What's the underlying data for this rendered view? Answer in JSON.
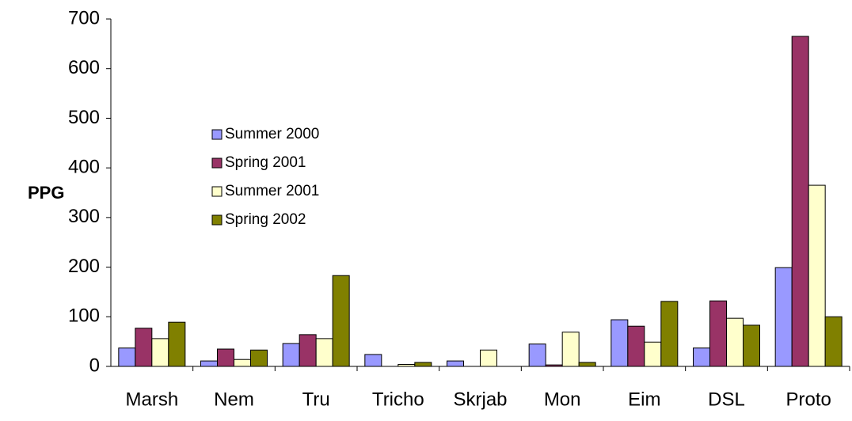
{
  "chart_data": {
    "type": "bar",
    "y_label": "PPG",
    "categories": [
      "Marsh",
      "Nem",
      "Tru",
      "Tricho",
      "Skrjab",
      "Mon",
      "Eim",
      "DSL",
      "Proto"
    ],
    "series": [
      {
        "name": "Summer 2000",
        "color": "#9999ff",
        "values": [
          37,
          11,
          46,
          24,
          11,
          45,
          94,
          37,
          199
        ]
      },
      {
        "name": "Spring 2001",
        "color": "#993366",
        "values": [
          77,
          35,
          64,
          0,
          0,
          3,
          81,
          132,
          665
        ]
      },
      {
        "name": "Summer 2001",
        "color": "#ffffcc",
        "values": [
          56,
          14,
          56,
          4,
          33,
          69,
          49,
          97,
          365
        ]
      },
      {
        "name": "Spring 2002",
        "color": "#808000",
        "values": [
          89,
          33,
          183,
          8,
          0,
          8,
          131,
          83,
          100
        ]
      }
    ],
    "ylim": [
      0,
      700
    ],
    "yticks": [
      0,
      100,
      200,
      300,
      400,
      500,
      600,
      700
    ],
    "grid": false,
    "legend": "upper-left"
  }
}
